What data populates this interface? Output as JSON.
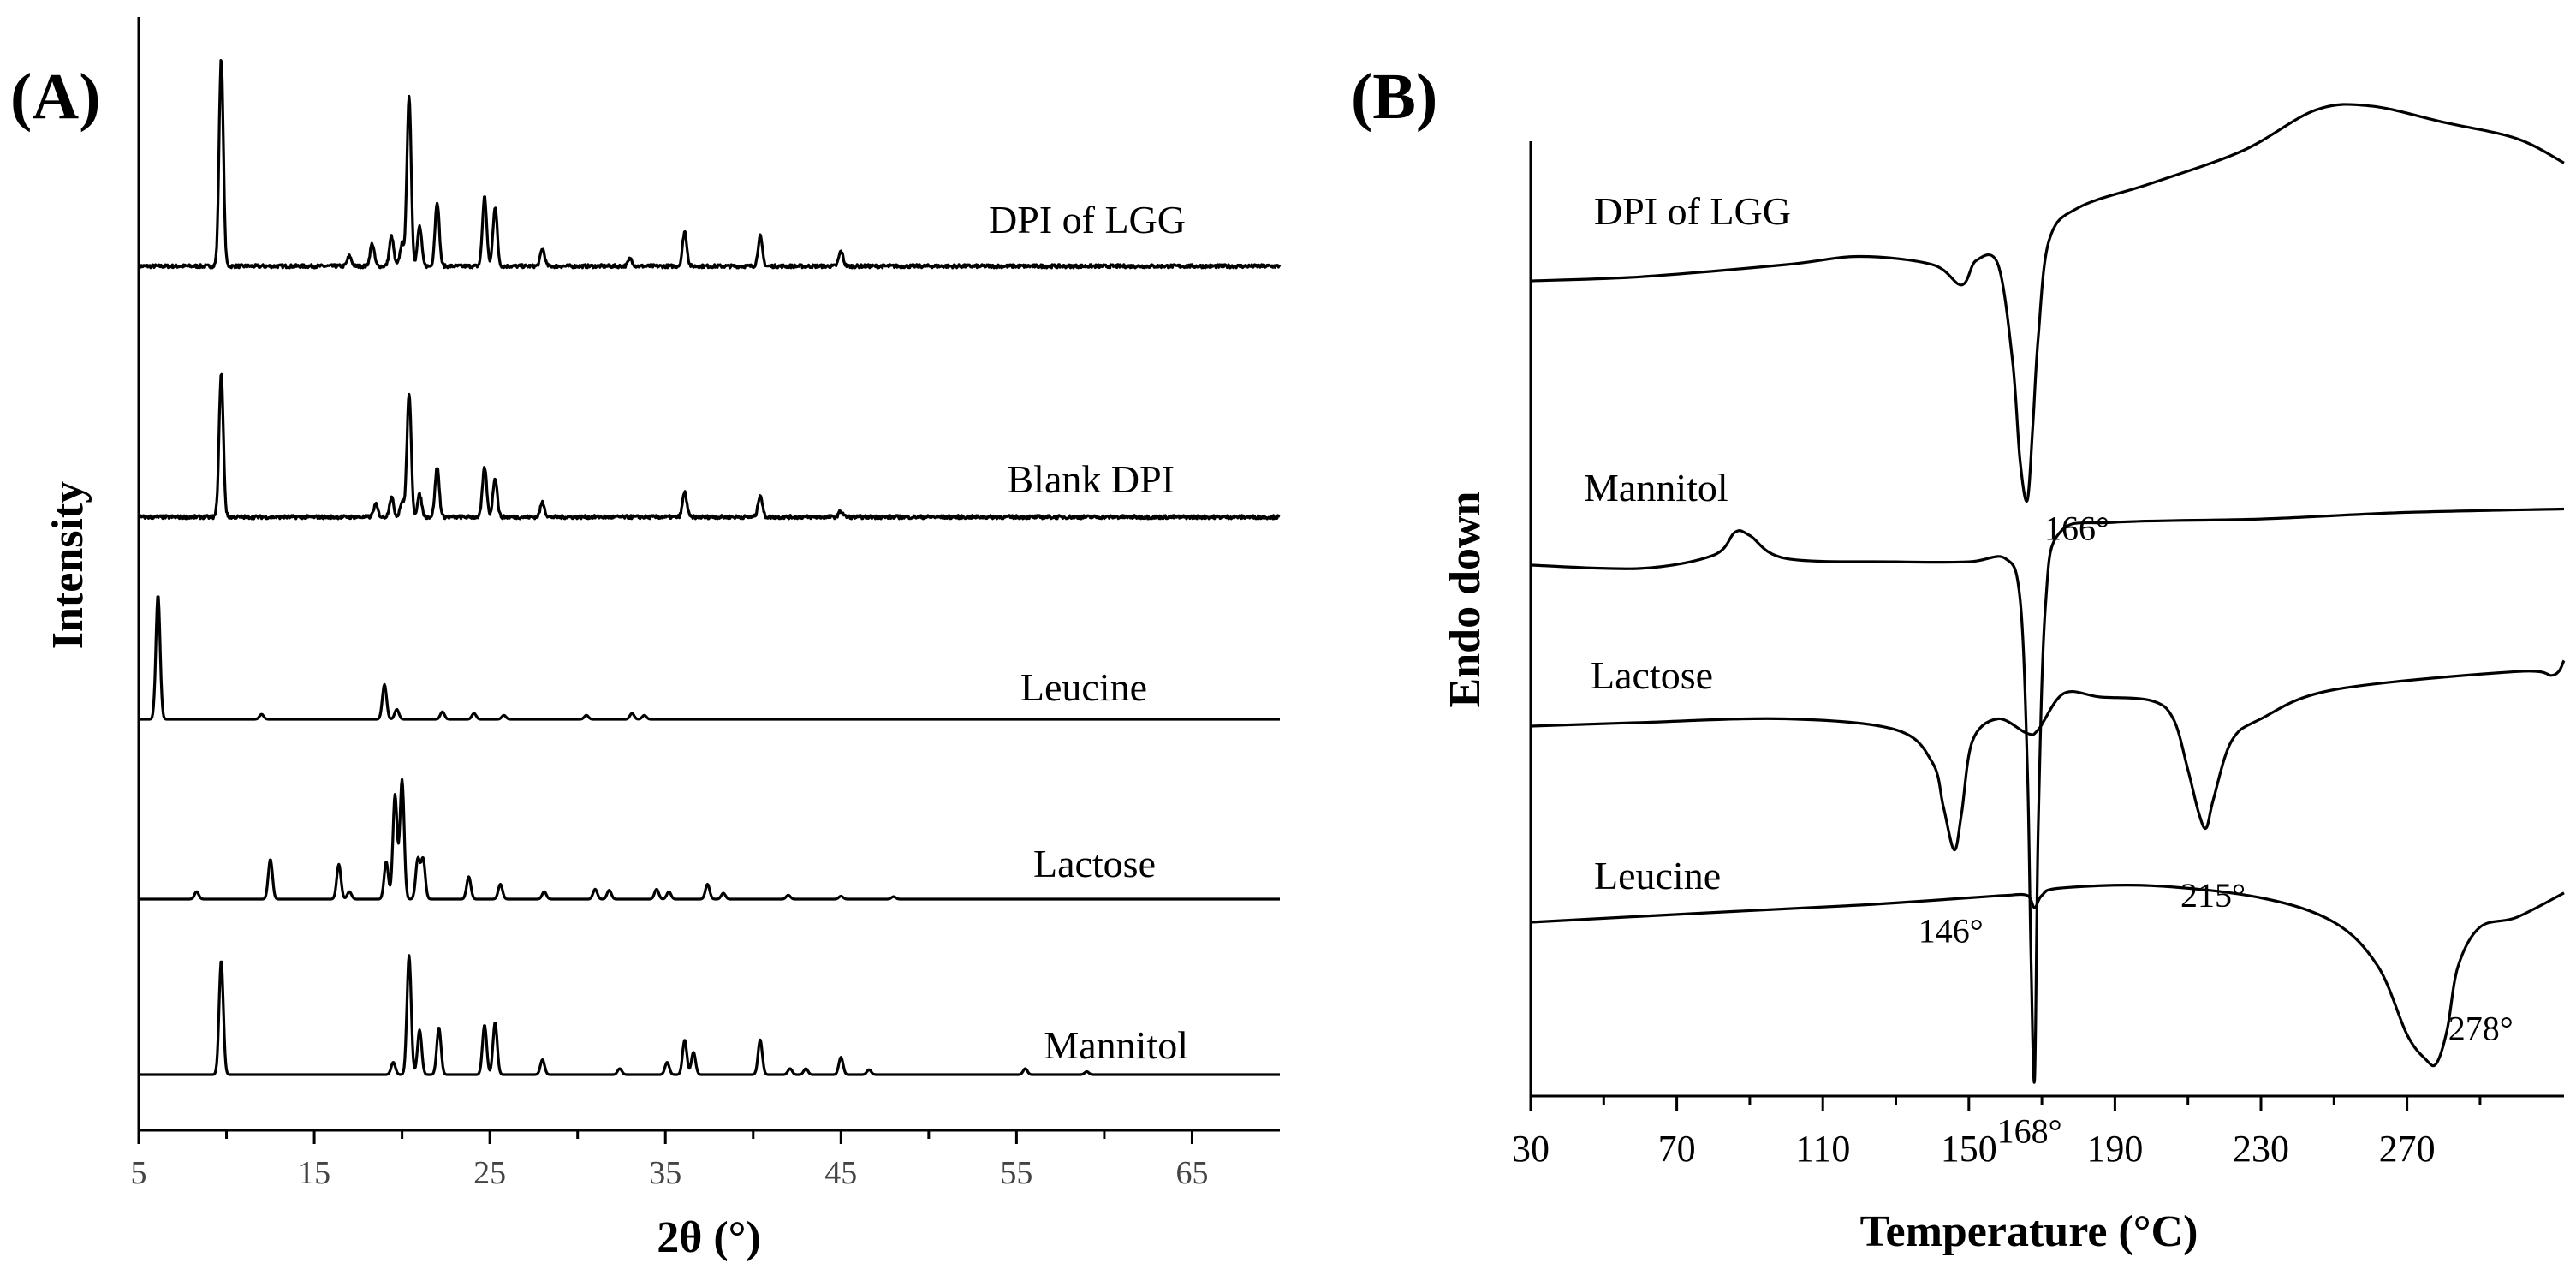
{
  "chart_data": [
    {
      "panel": "(A)",
      "type": "line",
      "xlabel": "2θ (°)",
      "ylabel": "Intensity",
      "xlim": [
        5,
        70
      ],
      "xticks": [
        5,
        15,
        25,
        35,
        45,
        55,
        65
      ],
      "series": [
        {
          "name": "DPI of LGG",
          "baseline_offset": 4,
          "noise": 0.05,
          "peaks": [
            [
              9.7,
              4.2
            ],
            [
              17,
              0.2
            ],
            [
              18.3,
              0.45
            ],
            [
              19.4,
              0.6
            ],
            [
              20,
              0.45
            ],
            [
              20.4,
              3.45
            ],
            [
              21,
              0.8
            ],
            [
              22,
              1.3
            ],
            [
              24.7,
              1.4
            ],
            [
              25.3,
              1.2
            ],
            [
              28,
              0.35
            ],
            [
              33,
              0.15
            ],
            [
              36.1,
              0.7
            ],
            [
              40.4,
              0.6
            ],
            [
              45,
              0.3
            ]
          ]
        },
        {
          "name": "Blank DPI",
          "baseline_offset": 3,
          "noise": 0.05,
          "peaks": [
            [
              9.7,
              2.9
            ],
            [
              18.5,
              0.25
            ],
            [
              19.4,
              0.4
            ],
            [
              20,
              0.3
            ],
            [
              20.4,
              2.5
            ],
            [
              21,
              0.45
            ],
            [
              22,
              1.0
            ],
            [
              24.7,
              1.0
            ],
            [
              25.3,
              0.8
            ],
            [
              28,
              0.3
            ],
            [
              36.1,
              0.5
            ],
            [
              40.4,
              0.45
            ],
            [
              45,
              0.12
            ]
          ]
        },
        {
          "name": "Leucine",
          "baseline_offset": 2,
          "noise": 0,
          "peaks": [
            [
              6.1,
              2.5
            ],
            [
              12,
              0.1
            ],
            [
              19,
              0.7
            ],
            [
              19.7,
              0.2
            ],
            [
              22.3,
              0.15
            ],
            [
              24.1,
              0.12
            ],
            [
              25.8,
              0.08
            ],
            [
              30.5,
              0.08
            ],
            [
              33.1,
              0.12
            ],
            [
              33.8,
              0.08
            ]
          ]
        },
        {
          "name": "Lactose",
          "baseline_offset": 1,
          "noise": 0,
          "peaks": [
            [
              8.3,
              0.15
            ],
            [
              12.5,
              0.8
            ],
            [
              16.4,
              0.7
            ],
            [
              17,
              0.15
            ],
            [
              19.1,
              0.75
            ],
            [
              19.6,
              2.1
            ],
            [
              20.0,
              2.4
            ],
            [
              20.9,
              0.8
            ],
            [
              21.2,
              0.8
            ],
            [
              23.8,
              0.45
            ],
            [
              25.6,
              0.3
            ],
            [
              28.1,
              0.15
            ],
            [
              31,
              0.2
            ],
            [
              31.8,
              0.18
            ],
            [
              34.5,
              0.2
            ],
            [
              35.2,
              0.15
            ],
            [
              37.4,
              0.3
            ],
            [
              38.3,
              0.12
            ],
            [
              42,
              0.08
            ],
            [
              45,
              0.06
            ],
            [
              48,
              0.05
            ]
          ]
        },
        {
          "name": "Mannitol",
          "baseline_offset": 0,
          "noise": 0,
          "peaks": [
            [
              9.7,
              2.3
            ],
            [
              19.5,
              0.25
            ],
            [
              20.4,
              2.4
            ],
            [
              21,
              0.9
            ],
            [
              22.1,
              0.95
            ],
            [
              24.7,
              1.0
            ],
            [
              25.3,
              1.05
            ],
            [
              28,
              0.3
            ],
            [
              32.4,
              0.12
            ],
            [
              35.1,
              0.25
            ],
            [
              36.1,
              0.7
            ],
            [
              36.6,
              0.45
            ],
            [
              40.4,
              0.7
            ],
            [
              42.1,
              0.12
            ],
            [
              43,
              0.12
            ],
            [
              45,
              0.35
            ],
            [
              46.6,
              0.1
            ],
            [
              55.5,
              0.12
            ],
            [
              59,
              0.06
            ]
          ]
        }
      ]
    },
    {
      "panel": "(B)",
      "type": "line",
      "xlabel": "Temperature (°C)",
      "ylabel": "Endo down",
      "xlim": [
        30,
        313
      ],
      "xticks": [
        30,
        70,
        110,
        150,
        190,
        230,
        270
      ],
      "series": [
        {
          "name": "DPI of LGG",
          "points": [
            [
              30,
              0
            ],
            [
              60,
              0.05
            ],
            [
              100,
              0.2
            ],
            [
              120,
              0.3
            ],
            [
              140,
              0.2
            ],
            [
              148,
              -0.05
            ],
            [
              152,
              0.25
            ],
            [
              158,
              0.2
            ],
            [
              162,
              -1.0
            ],
            [
              164,
              -2.2
            ],
            [
              166,
              -2.7
            ],
            [
              167.5,
              -1.8
            ],
            [
              169,
              -0.7
            ],
            [
              172,
              0.5
            ],
            [
              180,
              0.9
            ],
            [
              200,
              1.2
            ],
            [
              225,
              1.6
            ],
            [
              245,
              2.1
            ],
            [
              260,
              2.15
            ],
            [
              280,
              1.95
            ],
            [
              300,
              1.75
            ],
            [
              313,
              1.45
            ]
          ]
        },
        {
          "name": "Mannitol",
          "points": [
            [
              30,
              0
            ],
            [
              60,
              -0.05
            ],
            [
              80,
              0.15
            ],
            [
              86,
              0.5
            ],
            [
              90,
              0.45
            ],
            [
              100,
              0.1
            ],
            [
              130,
              0.05
            ],
            [
              150,
              0.05
            ],
            [
              160,
              0.1
            ],
            [
              164,
              -0.5
            ],
            [
              166,
              -3.0
            ],
            [
              167,
              -5.9
            ],
            [
              168,
              -7.8
            ],
            [
              169,
              -4.0
            ],
            [
              171,
              -0.6
            ],
            [
              175,
              0.5
            ],
            [
              190,
              0.65
            ],
            [
              230,
              0.7
            ],
            [
              270,
              0.8
            ],
            [
              313,
              0.85
            ]
          ]
        },
        {
          "name": "Lactose",
          "points": [
            [
              30,
              0
            ],
            [
              60,
              0.05
            ],
            [
              100,
              0.1
            ],
            [
              130,
              -0.05
            ],
            [
              140,
              -0.5
            ],
            [
              143,
              -1.1
            ],
            [
              146,
              -1.7
            ],
            [
              148,
              -1.2
            ],
            [
              151,
              -0.2
            ],
            [
              158,
              0.1
            ],
            [
              166,
              -0.1
            ],
            [
              169,
              -0.05
            ],
            [
              176,
              0.45
            ],
            [
              186,
              0.4
            ],
            [
              200,
              0.35
            ],
            [
              206,
              0.1
            ],
            [
              210,
              -0.6
            ],
            [
              213,
              -1.2
            ],
            [
              215,
              -1.4
            ],
            [
              217,
              -1.0
            ],
            [
              222,
              -0.2
            ],
            [
              230,
              0.1
            ],
            [
              250,
              0.5
            ],
            [
              300,
              0.75
            ],
            [
              310,
              0.7
            ],
            [
              313,
              0.9
            ]
          ]
        },
        {
          "name": "Leucine",
          "points": [
            [
              30,
              0
            ],
            [
              80,
              0.2
            ],
            [
              120,
              0.35
            ],
            [
              150,
              0.5
            ],
            [
              160,
              0.55
            ],
            [
              166,
              0.55
            ],
            [
              168,
              0.3
            ],
            [
              170,
              0.55
            ],
            [
              175,
              0.7
            ],
            [
              200,
              0.75
            ],
            [
              230,
              0.5
            ],
            [
              250,
              0.0
            ],
            [
              262,
              -0.9
            ],
            [
              270,
              -2.3
            ],
            [
              275,
              -2.8
            ],
            [
              278,
              -2.9
            ],
            [
              281,
              -2.2
            ],
            [
              284,
              -0.9
            ],
            [
              290,
              -0.1
            ],
            [
              300,
              0.1
            ],
            [
              313,
              0.6
            ]
          ]
        }
      ],
      "annotations": [
        {
          "text": "166°",
          "x": 166,
          "series": "DPI of LGG"
        },
        {
          "text": "146°",
          "x": 146,
          "series": "Lactose"
        },
        {
          "text": "215°",
          "x": 215,
          "series": "Lactose"
        },
        {
          "text": "168°",
          "x": 168,
          "series": "Mannitol"
        },
        {
          "text": "278°",
          "x": 278,
          "series": "Leucine"
        }
      ]
    }
  ]
}
